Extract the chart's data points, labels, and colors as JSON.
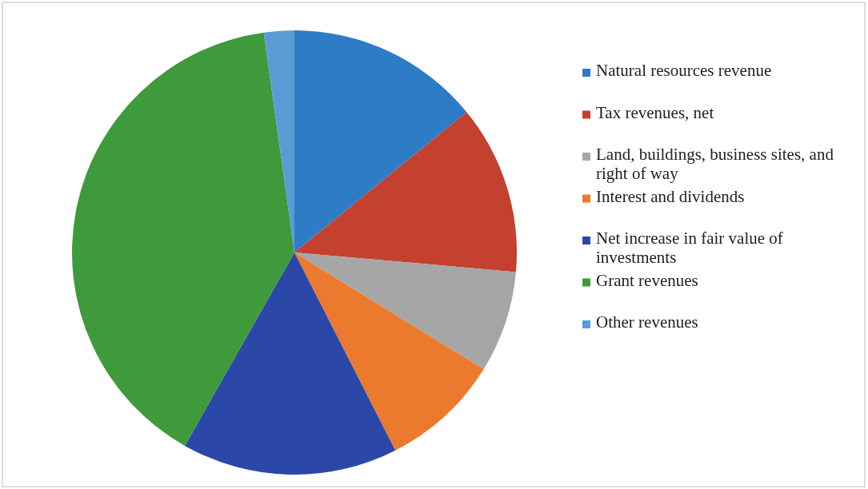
{
  "chart_data": {
    "type": "pie",
    "categories": [
      "Natural resources revenue",
      "Tax revenues, net",
      "Land, buildings, business sites, and right of way",
      "Interest and dividends",
      "Net increase in fair value of investments",
      "Grant revenues",
      "Other revenues"
    ],
    "values": [
      14.1,
      12.3,
      7.4,
      8.7,
      15.7,
      39.6,
      2.2
    ],
    "colors": [
      "#2f7cc6",
      "#c4402f",
      "#a6a6a6",
      "#ec7a2e",
      "#2b48a8",
      "#3e9a3b",
      "#5b9bd5"
    ],
    "legend": "right"
  }
}
